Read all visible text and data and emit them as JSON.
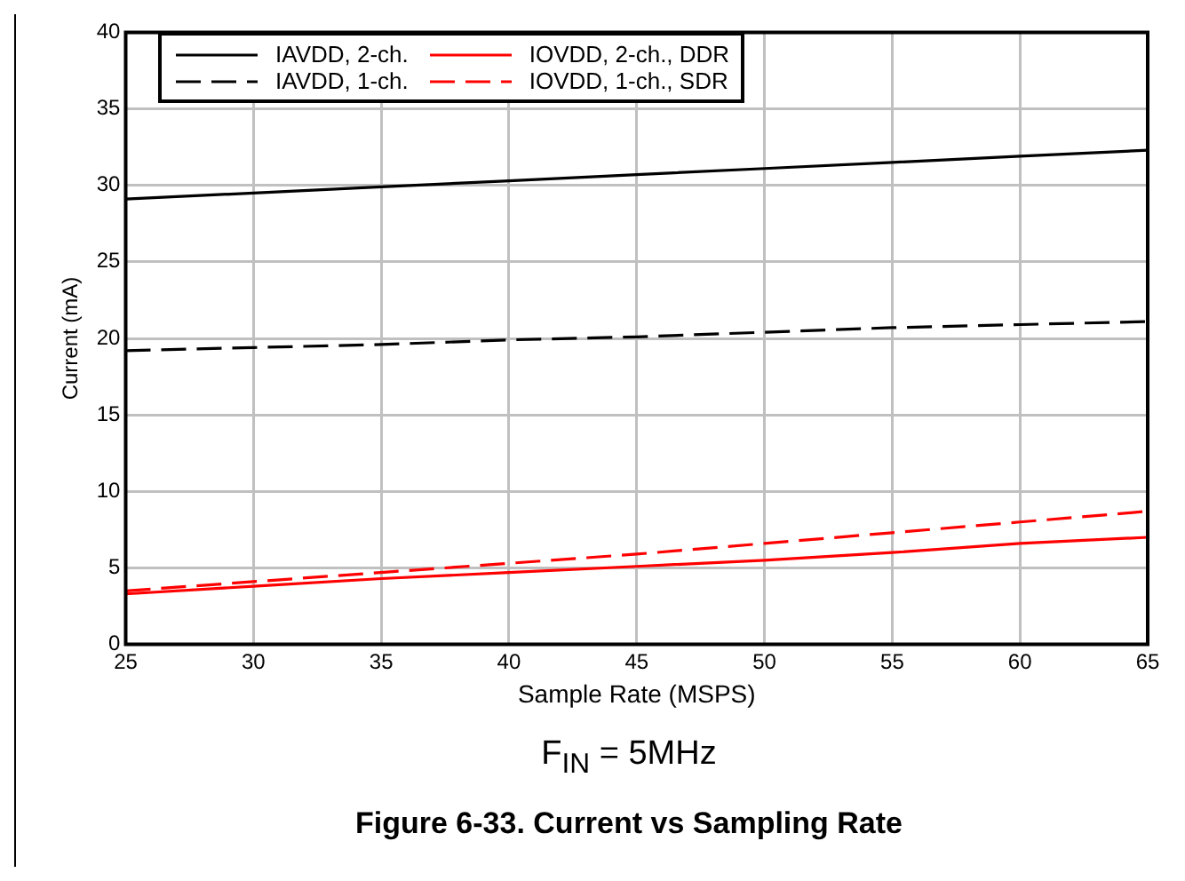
{
  "chart_data": {
    "type": "line",
    "title": "Figure 6-33. Current vs Sampling Rate",
    "annotations": [
      "F$_{IN}$ = 5MHz"
    ],
    "xlabel": "Sample Rate (MSPS)",
    "ylabel": "Current (mA)",
    "x": [
      25,
      30,
      35,
      40,
      45,
      50,
      55,
      60,
      65
    ],
    "series": [
      {
        "name": "IAVDD, 2-ch.",
        "color": "#000000",
        "line_style": "solid",
        "values": [
          29.1,
          29.5,
          29.9,
          30.3,
          30.7,
          31.1,
          31.5,
          31.9,
          32.3
        ]
      },
      {
        "name": "IAVDD, 1-ch.",
        "color": "#000000",
        "line_style": "dashed",
        "values": [
          19.2,
          19.4,
          19.6,
          19.9,
          20.1,
          20.4,
          20.7,
          20.9,
          21.1
        ]
      },
      {
        "name": "IOVDD, 2-ch., DDR",
        "color": "#ff0000",
        "line_style": "solid",
        "values": [
          3.3,
          3.8,
          4.3,
          4.7,
          5.1,
          5.5,
          6.0,
          6.6,
          7.0
        ]
      },
      {
        "name": "IOVDD, 1-ch., SDR",
        "color": "#ff0000",
        "line_style": "dashed",
        "values": [
          3.5,
          4.1,
          4.7,
          5.3,
          5.9,
          6.6,
          7.3,
          8.0,
          8.7
        ]
      }
    ],
    "xlim": [
      25,
      65
    ],
    "xticks": [
      25,
      30,
      35,
      40,
      45,
      50,
      55,
      60,
      65
    ],
    "ylim": [
      0,
      40
    ],
    "yticks": [
      0,
      5,
      10,
      15,
      20,
      25,
      30,
      35,
      40
    ],
    "grid": true,
    "legend": "top left",
    "marker": "none"
  }
}
